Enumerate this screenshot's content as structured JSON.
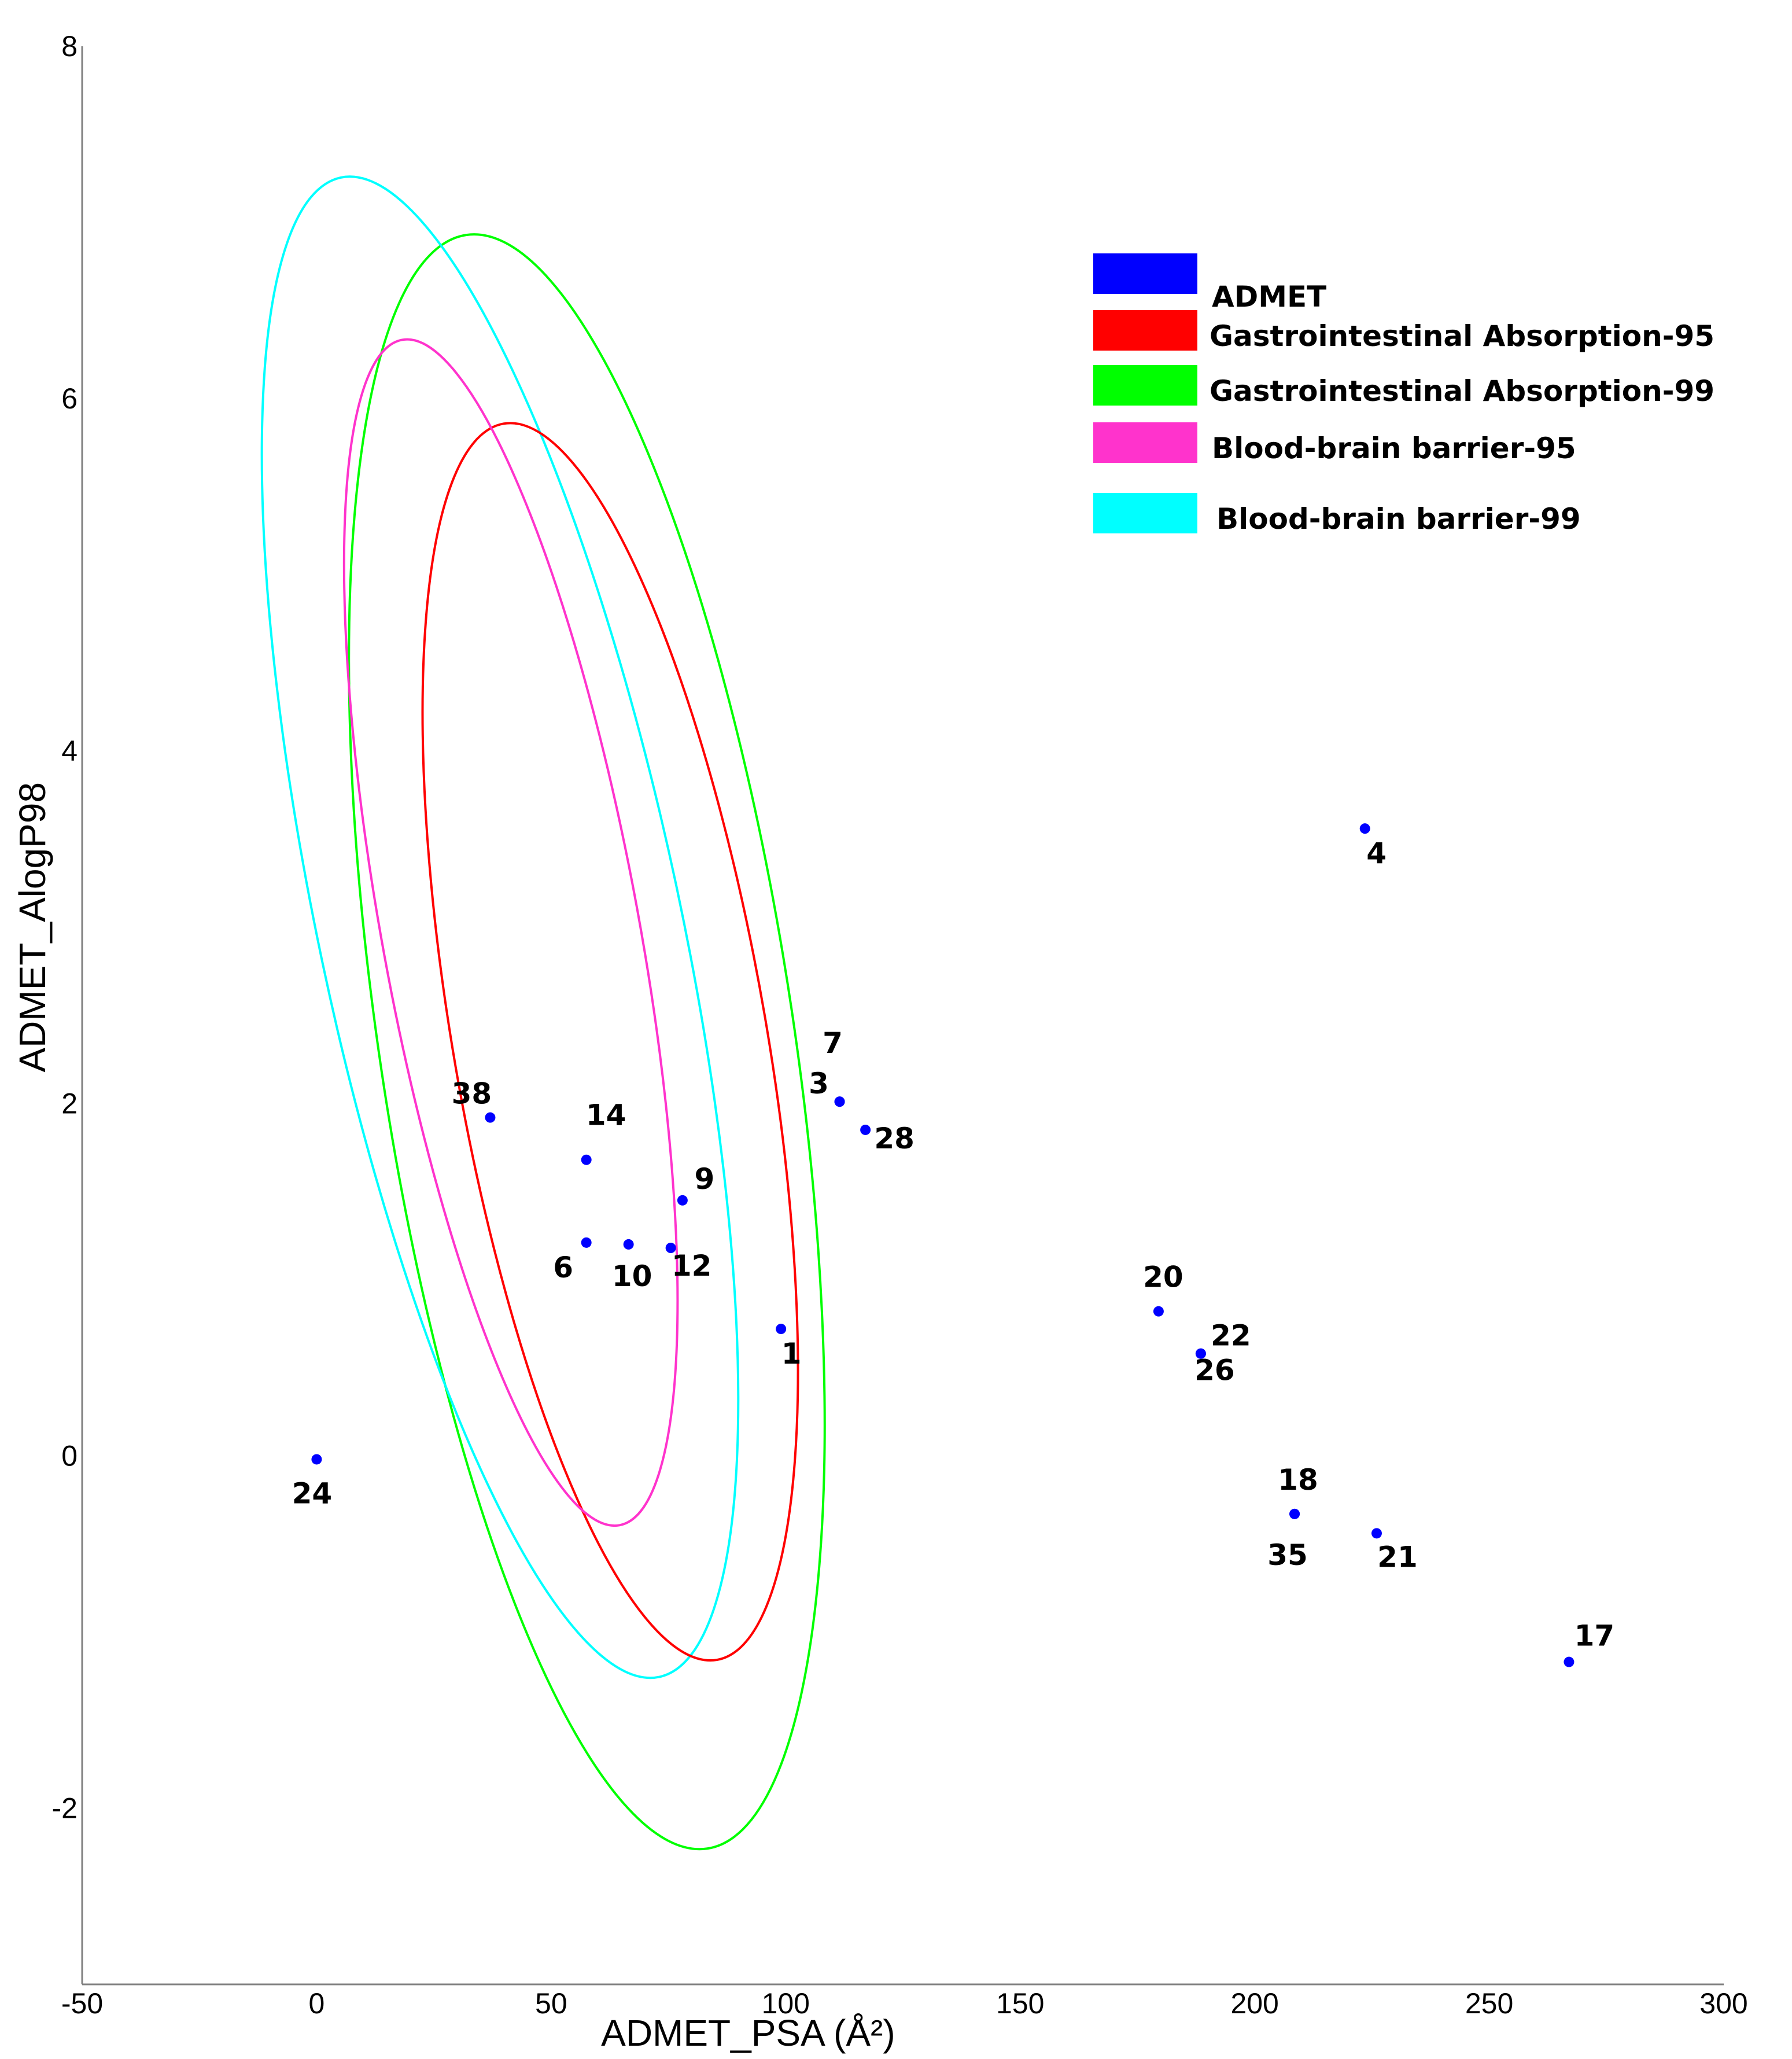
{
  "chart_data": {
    "type": "scatter",
    "title": "",
    "xlabel": "ADMET_PSA (Å²)",
    "ylabel": "ADMET_AlogP98",
    "xlim": [
      -50,
      300
    ],
    "ylim": [
      -3,
      8
    ],
    "x_ticks": [
      -50,
      0,
      50,
      100,
      150,
      200,
      250,
      300
    ],
    "x_tick_labels": [
      "-50",
      "0",
      "50",
      "100",
      "150",
      "200",
      "250",
      "300"
    ],
    "y_ticks": [
      -2,
      0,
      2,
      4,
      6,
      8
    ],
    "y_tick_labels": [
      "-2",
      "0",
      "2",
      "4",
      "6",
      "8"
    ],
    "grid": false,
    "legend_position": "top-right",
    "legend": [
      {
        "label": "ADMET",
        "color": "#0000ff"
      },
      {
        "label": "Gastrointestinal Absorption-95",
        "color": "#ff0000"
      },
      {
        "label": "Gastrointestinal Absorption-99",
        "color": "#00ff00"
      },
      {
        "label": "Blood-brain barrier-95",
        "color": "#ff33cc"
      },
      {
        "label": "Blood-brain barrier-99",
        "color": "#00ffff"
      }
    ],
    "points": [
      {
        "label": "1",
        "x": 99.0,
        "y": 0.72
      },
      {
        "label": "3",
        "x": 111.5,
        "y": 2.01
      },
      {
        "label": "4",
        "x": 223.5,
        "y": 3.56
      },
      {
        "label": "6",
        "x": 57.5,
        "y": 1.21
      },
      {
        "label": "7",
        "x": 111.5,
        "y": 2.01
      },
      {
        "label": "9",
        "x": 78.0,
        "y": 1.45
      },
      {
        "label": "10",
        "x": 66.5,
        "y": 1.2
      },
      {
        "label": "12",
        "x": 75.5,
        "y": 1.18
      },
      {
        "label": "14",
        "x": 57.5,
        "y": 1.68
      },
      {
        "label": "17",
        "x": 267.0,
        "y": -1.17
      },
      {
        "label": "18",
        "x": 208.5,
        "y": -0.33
      },
      {
        "label": "20",
        "x": 179.5,
        "y": 0.82
      },
      {
        "label": "21",
        "x": 226.0,
        "y": -0.44
      },
      {
        "label": "22",
        "x": 188.5,
        "y": 0.58
      },
      {
        "label": "24",
        "x": 0.0,
        "y": -0.02
      },
      {
        "label": "26",
        "x": 188.5,
        "y": 0.58
      },
      {
        "label": "28",
        "x": 117.0,
        "y": 1.85
      },
      {
        "label": "35",
        "x": 208.5,
        "y": -0.33
      },
      {
        "label": "38",
        "x": 37.0,
        "y": 1.92
      }
    ],
    "ellipses": [
      {
        "name": "Gastrointestinal Absorption-99",
        "color": "#00ff00",
        "center": [
          57.6,
          2.35
        ],
        "semi_axes": [
          44.2,
          4.63
        ],
        "rotation_deg": -8.5
      },
      {
        "name": "Blood-brain barrier-99",
        "color": "#00ffff",
        "center": [
          39.1,
          3.0
        ],
        "semi_axes": [
          38.6,
          4.35
        ],
        "rotation_deg": -12.0
      },
      {
        "name": "Gastrointestinal Absorption-95",
        "color": "#ff0000",
        "center": [
          62.6,
          2.35
        ],
        "semi_axes": [
          33.4,
          3.56
        ],
        "rotation_deg": -9.8
      },
      {
        "name": "Blood-brain barrier-95",
        "color": "#ff33cc",
        "center": [
          41.4,
          2.97
        ],
        "semi_axes": [
          27.4,
          3.42
        ],
        "rotation_deg": -10.4
      }
    ]
  }
}
